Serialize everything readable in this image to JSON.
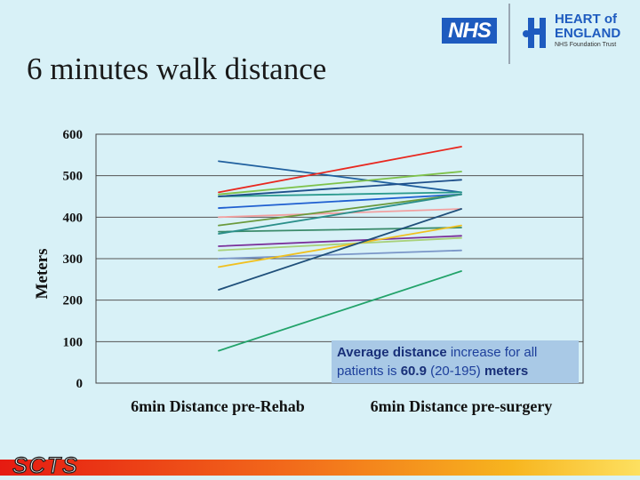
{
  "slide": {
    "title": "6 minutes walk distance",
    "footer_brand": "SCTS"
  },
  "logos": {
    "nhs": "NHS",
    "trust_line1": "HEART of",
    "trust_line2": "ENGLAND",
    "trust_line3": "NHS Foundation Trust",
    "brand_color": "#1e5bbf"
  },
  "annotation": {
    "part1_bold": "Average distance",
    "part2": " increase for all patients is ",
    "part3_bold": "60.9",
    "part4": " (20-195) ",
    "part5_bold": "meters"
  },
  "chart_data": {
    "type": "line",
    "title": "",
    "xlabel": "",
    "ylabel": "Meters",
    "categories": [
      "6min Distance pre-Rehab",
      "6min Distance pre-surgery"
    ],
    "ylim": [
      0,
      600
    ],
    "yticks": [
      0,
      100,
      200,
      300,
      400,
      500,
      600
    ],
    "grid": true,
    "series": [
      {
        "color": "#1f5f9e",
        "values": [
          535,
          460
        ]
      },
      {
        "color": "#e8281f",
        "values": [
          460,
          570
        ]
      },
      {
        "color": "#7ec24a",
        "values": [
          455,
          510
        ]
      },
      {
        "color": "#2a9a8e",
        "values": [
          450,
          460
        ]
      },
      {
        "color": "#1e4f8a",
        "values": [
          450,
          490
        ]
      },
      {
        "color": "#1f5fd0",
        "values": [
          422,
          455
        ]
      },
      {
        "color": "#f2a0a0",
        "values": [
          400,
          420
        ]
      },
      {
        "color": "#6a9a3c",
        "values": [
          380,
          455
        ]
      },
      {
        "color": "#3a8a6a",
        "values": [
          365,
          375
        ]
      },
      {
        "color": "#2b8f8a",
        "values": [
          360,
          455
        ]
      },
      {
        "color": "#7a2f9a",
        "values": [
          330,
          355
        ]
      },
      {
        "color": "#a8d17a",
        "values": [
          320,
          350
        ]
      },
      {
        "color": "#7a96c8",
        "values": [
          300,
          320
        ]
      },
      {
        "color": "#f0c020",
        "values": [
          280,
          380
        ]
      },
      {
        "color": "#1f4f7a",
        "values": [
          225,
          420
        ]
      },
      {
        "color": "#22a36a",
        "values": [
          78,
          270
        ]
      }
    ]
  }
}
